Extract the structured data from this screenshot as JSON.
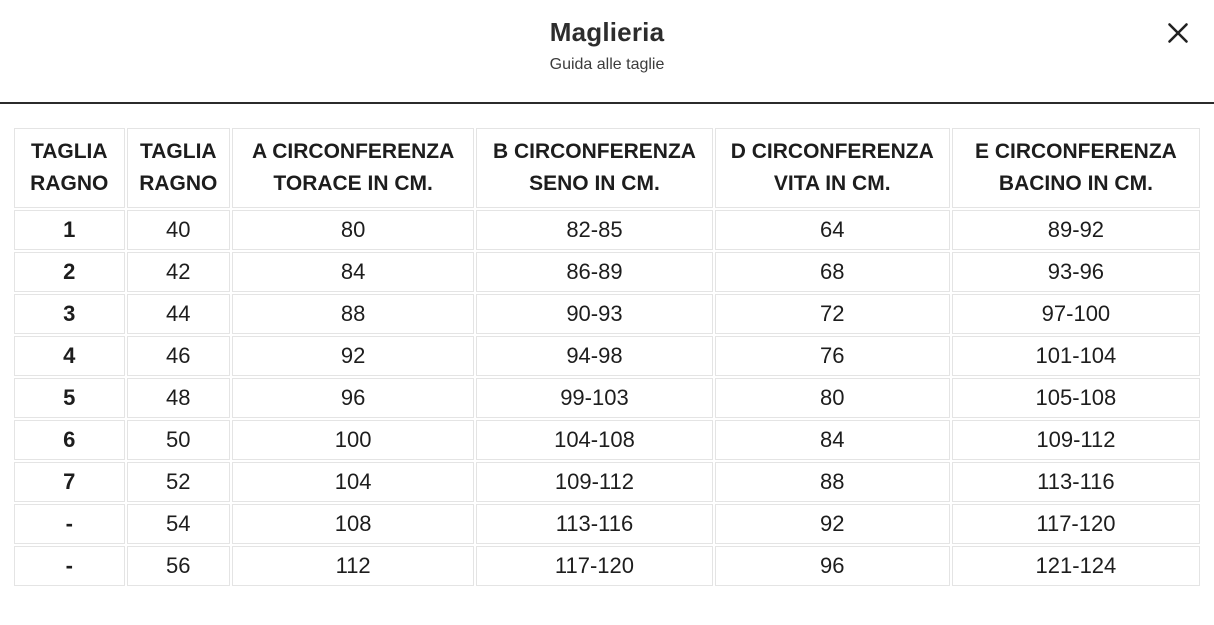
{
  "modal": {
    "title": "Maglieria",
    "subtitle": "Guida alle taglie"
  },
  "table": {
    "headers": [
      {
        "line1": "TAGLIA",
        "line2": "RAGNO"
      },
      {
        "line1": "TAGLIA",
        "line2": "RAGNO"
      },
      {
        "line1": "A CIRCONFERENZA",
        "line2": "TORACE IN CM."
      },
      {
        "line1": "B CIRCONFERENZA",
        "line2": "SENO IN CM."
      },
      {
        "line1": "D CIRCONFERENZA",
        "line2": "VITA IN CM."
      },
      {
        "line1": "E CIRCONFERENZA",
        "line2": "BACINO IN CM."
      }
    ],
    "rows": [
      [
        "1",
        "40",
        "80",
        "82-85",
        "64",
        "89-92"
      ],
      [
        "2",
        "42",
        "84",
        "86-89",
        "68",
        "93-96"
      ],
      [
        "3",
        "44",
        "88",
        "90-93",
        "72",
        "97-100"
      ],
      [
        "4",
        "46",
        "92",
        "94-98",
        "76",
        "101-104"
      ],
      [
        "5",
        "48",
        "96",
        "99-103",
        "80",
        "105-108"
      ],
      [
        "6",
        "50",
        "100",
        "104-108",
        "84",
        "109-112"
      ],
      [
        "7",
        "52",
        "104",
        "109-112",
        "88",
        "113-116"
      ],
      [
        "-",
        "54",
        "108",
        "113-116",
        "92",
        "117-120"
      ],
      [
        "-",
        "56",
        "112",
        "117-120",
        "96",
        "121-124"
      ]
    ]
  },
  "colors": {
    "text": "#1d1d1d",
    "divider": "#2b2b2b",
    "cell_border": "#e4e4e4",
    "background": "#ffffff"
  }
}
